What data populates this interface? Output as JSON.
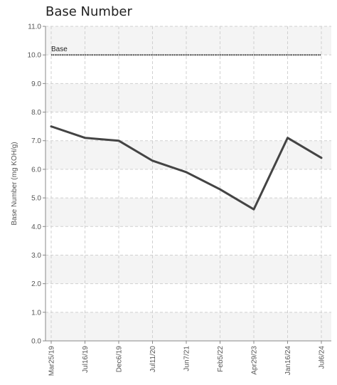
{
  "chart_data": {
    "type": "line",
    "title": "Base Number",
    "ylabel": "Base Number (mg KOH/g)",
    "xlabel": "",
    "ylim": [
      0,
      11
    ],
    "yticks": [
      "0.0",
      "1.0",
      "2.0",
      "3.0",
      "4.0",
      "5.0",
      "6.0",
      "7.0",
      "8.0",
      "9.0",
      "10.0",
      "11.0"
    ],
    "categories": [
      "Mar25/19",
      "Jul16/19",
      "Dec6/19",
      "Jul11/20",
      "Jun7/21",
      "Feb5/22",
      "Apr29/23",
      "Jan16/24",
      "Jul6/24"
    ],
    "series": [
      {
        "values": [
          7.5,
          7.1,
          7.0,
          6.3,
          5.9,
          5.3,
          4.6,
          7.1,
          6.4
        ],
        "color": "#444444"
      }
    ],
    "reference_line": {
      "label": "Base",
      "value": 10.0,
      "color": "#444444",
      "style": "dotted"
    },
    "grid": true,
    "band_colors": [
      "#f4f4f4",
      "#ffffff"
    ]
  }
}
